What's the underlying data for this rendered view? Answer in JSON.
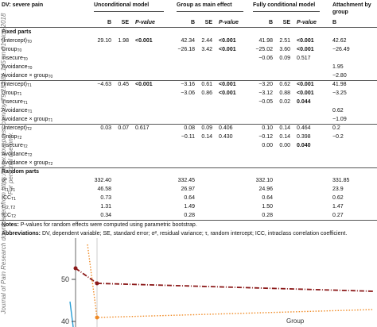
{
  "table": {
    "header": [
      "DV: severe pain",
      "Unconditional model",
      "Group as main effect",
      "Fully conditional model",
      "Attachment by group"
    ],
    "subheader": [
      "B",
      "SE",
      "P-value",
      "B",
      "SE",
      "P-value",
      "B",
      "SE",
      "P-value",
      "B"
    ],
    "sections": [
      {
        "title": "Fixed parts",
        "rows": [
          {
            "label": "(Intercept)",
            "sub": "T0",
            "cells": [
              "29.10",
              "1.98",
              {
                "text": "<0.001",
                "bold": true
              },
              "42.34",
              "2.44",
              {
                "text": "<0.001",
                "bold": true
              },
              "41.98",
              "2.51",
              {
                "text": "<0.001",
                "bold": true
              },
              "42.62"
            ]
          },
          {
            "label": "Group",
            "sub": "T0",
            "cells": [
              null,
              null,
              null,
              "−26.18",
              "3.42",
              {
                "text": "<0.001",
                "bold": true
              },
              "−25.02",
              "3.60",
              {
                "text": "<0.001",
                "bold": true
              },
              "−26.49"
            ]
          },
          {
            "label": "Insecure",
            "sub": "T0",
            "cells": [
              null,
              null,
              null,
              null,
              null,
              null,
              "−0.06",
              "0.09",
              "0.517",
              null
            ]
          },
          {
            "label": "Avoidance",
            "sub": "T0",
            "cells": [
              null,
              null,
              null,
              null,
              null,
              null,
              null,
              null,
              null,
              "1.95"
            ]
          },
          {
            "label": "Avoidance × group",
            "sub": "T0",
            "cells": [
              null,
              null,
              null,
              null,
              null,
              null,
              null,
              null,
              null,
              "−2.80"
            ]
          },
          {
            "label": "(Intercept)",
            "sub": "T1",
            "cells": [
              "−4.63",
              "0.45",
              {
                "text": "<0.001",
                "bold": true
              },
              "−3.16",
              "0.61",
              {
                "text": "<0.001",
                "bold": true
              },
              "−3.20",
              "0.62",
              {
                "text": "<0.001",
                "bold": true
              },
              "41.98"
            ]
          },
          {
            "label": "Group",
            "sub": "T1",
            "cells": [
              null,
              null,
              null,
              "−3.06",
              "0.86",
              {
                "text": "<0.001",
                "bold": true
              },
              "−3.12",
              "0.88",
              {
                "text": "<0.001",
                "bold": true
              },
              "−3.25"
            ]
          },
          {
            "label": "Insecure",
            "sub": "T1",
            "cells": [
              null,
              null,
              null,
              null,
              null,
              null,
              "−0.05",
              "0.02",
              {
                "text": "0.044",
                "bold": true
              },
              null
            ]
          },
          {
            "label": "Avoidance",
            "sub": "T1",
            "cells": [
              null,
              null,
              null,
              null,
              null,
              null,
              null,
              null,
              null,
              "0.62"
            ]
          },
          {
            "label": "Avoidance × group",
            "sub": "T1",
            "cells": [
              null,
              null,
              null,
              null,
              null,
              null,
              null,
              null,
              null,
              "−1.09"
            ]
          },
          {
            "label": "(Intercept)",
            "sub": "T2",
            "cells": [
              "0.03",
              "0.07",
              "0.617",
              "0.08",
              "0.09",
              "0.406",
              "0.10",
              "0.14",
              "0.464",
              "0.2"
            ]
          },
          {
            "label": "Group",
            "sub": "T2",
            "cells": [
              null,
              null,
              null,
              "−0.11",
              "0.14",
              "0.430",
              "−0.12",
              "0.14",
              "0.398",
              "−0.2"
            ]
          },
          {
            "label": "Insecure",
            "sub": "T2",
            "cells": [
              null,
              null,
              null,
              null,
              null,
              null,
              "0.00",
              "0.00",
              {
                "text": "0.040",
                "bold": true
              },
              null
            ]
          },
          {
            "label": "Avoidance",
            "sub": "T2",
            "cells": [
              null,
              null,
              null,
              null,
              null,
              null,
              null,
              null,
              null,
              null
            ]
          },
          {
            "label": "Avoidance × group",
            "sub": "T2",
            "cells": [
              null,
              null,
              null,
              null,
              null,
              null,
              null,
              null,
              null,
              null
            ]
          }
        ]
      },
      {
        "title": "Random parts",
        "rows": [
          {
            "label": "σ²",
            "sub": null,
            "cells": [
              "332.40",
              null,
              null,
              "332.45",
              null,
              null,
              "332.10",
              null,
              null,
              "331.85"
            ]
          },
          {
            "label": "τ",
            "sub": "T1, T1",
            "cells": [
              "46.58",
              null,
              null,
              "26.97",
              null,
              null,
              "24.96",
              null,
              null,
              "23.9"
            ]
          },
          {
            "label": "ICC",
            "sub": "T1",
            "cells": [
              "0.73",
              null,
              null,
              "0.64",
              null,
              null,
              "0.64",
              null,
              null,
              "0.62"
            ]
          },
          {
            "label": "τ",
            "sub": "T2, T2",
            "cells": [
              "1.31",
              null,
              null,
              "1.49",
              null,
              null,
              "1.50",
              null,
              null,
              "1.47"
            ]
          },
          {
            "label": "ICC",
            "sub": "T2",
            "cells": [
              "0.34",
              null,
              null,
              "0.28",
              null,
              null,
              "0.28",
              null,
              null,
              "0.27"
            ]
          }
        ]
      }
    ],
    "notes": [
      {
        "lead": "Notes:",
        "text": " P-values for random effects were computed using parametric bootstrap."
      },
      {
        "lead": "Abbreviations:",
        "text": " DV, dependent variable; SE, standard error; σ², residual variance; τ, random intercept; ICC, intraclass correlation coefficient."
      }
    ]
  },
  "side_text": [
    "Journal of Pain Research downloaded from https://www.dovepress.com/ by 79.253.81.145 on 01-Nov-2018",
    "For personal use only."
  ],
  "figure": {
    "yticks": [
      "50",
      "40"
    ],
    "legend_label": "Group"
  }
}
